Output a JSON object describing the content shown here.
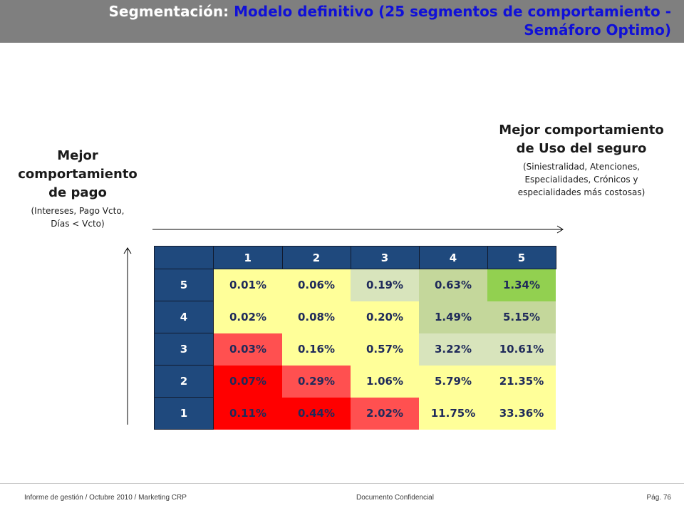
{
  "header": {
    "title_prefix": "Segmentación: ",
    "title_highlight": "Modelo definitivo (25 segmentos de comportamiento - Semáforo Optimo)"
  },
  "left_label": {
    "main": "Mejor comportamiento de pago",
    "sub": "(Intereses, Pago Vcto, Días < Vcto)"
  },
  "right_label": {
    "main": "Mejor comportamiento de Uso del seguro",
    "sub": "(Siniestralidad, Atenciones, Especialidades, Crónicos y especialidades más costosas)"
  },
  "matrix": {
    "column_headers": [
      "1",
      "2",
      "3",
      "4",
      "5"
    ],
    "rows": [
      {
        "label": "5",
        "values": [
          "0.01%",
          "0.06%",
          "0.19%",
          "0.63%",
          "1.34%"
        ],
        "colors": [
          "#ffff99",
          "#ffff99",
          "#d8e4bc",
          "#c4d79b",
          "#92d050"
        ]
      },
      {
        "label": "4",
        "values": [
          "0.02%",
          "0.08%",
          "0.20%",
          "1.49%",
          "5.15%"
        ],
        "colors": [
          "#ffff99",
          "#ffff99",
          "#ffff99",
          "#c4d79b",
          "#c4d79b"
        ]
      },
      {
        "label": "3",
        "values": [
          "0.03%",
          "0.16%",
          "0.57%",
          "3.22%",
          "10.61%"
        ],
        "colors": [
          "#ff5050",
          "#ffff99",
          "#ffff99",
          "#d8e4bc",
          "#d8e4bc"
        ]
      },
      {
        "label": "2",
        "values": [
          "0.07%",
          "0.29%",
          "1.06%",
          "5.79%",
          "21.35%"
        ],
        "colors": [
          "#ff0000",
          "#ff5050",
          "#ffff99",
          "#ffff99",
          "#ffff99"
        ]
      },
      {
        "label": "1",
        "values": [
          "0.11%",
          "0.44%",
          "2.02%",
          "11.75%",
          "33.36%"
        ],
        "colors": [
          "#ff0000",
          "#ff0000",
          "#ff5050",
          "#ffff99",
          "#ffff99"
        ]
      }
    ],
    "header_color": "#1f497d"
  },
  "footer": {
    "left": "Informe de gestión / Octubre 2010 / Marketing CRP",
    "center": "Documento Confidencial",
    "right": "Pág. 76"
  }
}
